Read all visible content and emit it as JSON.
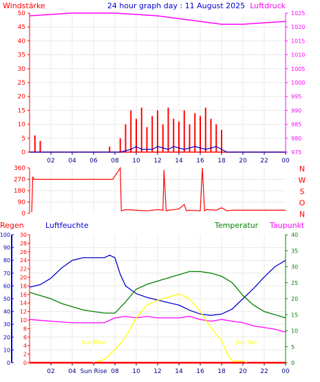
{
  "title": "24 hour graph day : 11 August 2025",
  "colors": {
    "red": "#ff0000",
    "magenta": "#ff00ff",
    "blue": "#0000cc",
    "green": "#008000",
    "yellow": "#ffff00",
    "grid": "#e8e8e8"
  },
  "chart_data": [
    {
      "type": "line",
      "name": "wind-pressure",
      "left_label": "Windstärke",
      "right_label": "Luftdruck",
      "x_ticks": [
        "02",
        "04",
        "06",
        "08",
        "10",
        "12",
        "14",
        "16",
        "18",
        "20",
        "22",
        "00"
      ],
      "y_left_ticks": [
        "0",
        "5",
        "10",
        "15",
        "20",
        "25",
        "30",
        "35",
        "40",
        "45",
        "50"
      ],
      "y_right_ticks": [
        "975",
        "980",
        "985",
        "990",
        "995",
        "1000",
        "1005",
        "1010",
        "1015",
        "1020",
        "1025"
      ],
      "series": [
        {
          "axis": "left",
          "color": "#ff0000",
          "style": "bars",
          "x": [
            0.5,
            1.0,
            7.5,
            8.5,
            9.0,
            9.5,
            10.0,
            10.5,
            11.0,
            11.5,
            12.0,
            12.5,
            13.0,
            13.5,
            14.0,
            14.5,
            15.0,
            15.5,
            16.0,
            16.5,
            17.0,
            17.5,
            18.0
          ],
          "y": [
            6,
            4,
            2,
            5,
            10,
            15,
            12,
            16,
            9,
            13,
            15,
            10,
            16,
            12,
            11,
            15,
            10,
            14,
            13,
            16,
            12,
            10,
            8
          ]
        },
        {
          "axis": "left",
          "color": "#0000cc",
          "style": "line",
          "x": [
            0,
            8.5,
            9.5,
            10.0,
            10.5,
            11.5,
            12.0,
            13.0,
            13.5,
            14.5,
            15.5,
            16.5,
            17.5,
            18.5,
            24.0
          ],
          "y": [
            0,
            0,
            1,
            2,
            1,
            1,
            2,
            1,
            2,
            1,
            2,
            1,
            2,
            0,
            0
          ]
        },
        {
          "axis": "right",
          "color": "#ff00ff",
          "style": "line",
          "x": [
            0,
            4,
            8,
            12,
            16,
            18,
            20,
            22,
            24
          ],
          "y": [
            1024,
            1025,
            1025,
            1024,
            1022,
            1021,
            1021,
            1021.5,
            1022
          ]
        }
      ],
      "xlim": [
        0,
        24
      ],
      "ylim_left": [
        0,
        50
      ],
      "ylim_right": [
        975,
        1025
      ]
    },
    {
      "type": "line",
      "name": "wind-direction",
      "y_left_ticks": [
        "360",
        "270",
        "180",
        "90",
        "0"
      ],
      "y_right_labels": [
        "N",
        "W",
        "S",
        "O",
        "N"
      ],
      "series": [
        {
          "color": "#ff0000",
          "x": [
            0.2,
            0.3,
            0.4,
            7.8,
            8.5,
            8.6,
            9.0,
            10.0,
            11.0,
            12.0,
            12.5,
            12.6,
            12.8,
            13.0,
            14.0,
            14.5,
            14.7,
            15.0,
            16.0,
            16.2,
            16.4,
            16.6,
            17.5,
            18.0,
            18.5,
            19.0,
            24.0
          ],
          "y": [
            10,
            290,
            270,
            270,
            360,
            20,
            30,
            25,
            20,
            30,
            25,
            345,
            20,
            25,
            35,
            70,
            20,
            25,
            20,
            360,
            20,
            30,
            25,
            45,
            20,
            25,
            25
          ]
        }
      ],
      "xlim": [
        0,
        24
      ],
      "ylim": [
        0,
        360
      ]
    },
    {
      "type": "line",
      "name": "humidity-temperature",
      "labels": {
        "regen": "Regen",
        "luftfeuchte": "Luftfeuchte",
        "temperatur": "Temperatur",
        "taupunkt": "Taupunkt"
      },
      "annotations": {
        "sun_rise": "Sun Rise",
        "sun_set": "Sun Set"
      },
      "x_ticks": [
        "02",
        "04",
        "Sun Rise",
        "08",
        "10",
        "12",
        "14",
        "16",
        "18",
        "20",
        "22",
        "00"
      ],
      "y_left_ticks": [
        "0",
        "10",
        "20",
        "30",
        "40",
        "50",
        "60",
        "70",
        "80",
        "90",
        "100"
      ],
      "y_regen_ticks": [
        "0",
        "2",
        "4",
        "6",
        "8",
        "10",
        "12",
        "14",
        "16",
        "18",
        "20",
        "22",
        "24",
        "26",
        "28",
        "30"
      ],
      "y_right_ticks": [
        "0",
        "5",
        "10",
        "15",
        "20",
        "25",
        "30",
        "35",
        "40"
      ],
      "series": [
        {
          "axis": "left",
          "color": "#0000cc",
          "x": [
            0,
            1,
            2,
            3,
            4,
            5,
            6,
            7,
            7.5,
            8,
            8.5,
            9,
            10,
            11,
            12,
            13,
            14,
            15,
            16,
            17,
            18,
            19,
            20,
            21,
            22,
            23,
            24
          ],
          "y": [
            59,
            61,
            66,
            74,
            80,
            82,
            82,
            82,
            84,
            82,
            69,
            60,
            54,
            51,
            49,
            47,
            45,
            41,
            38,
            37,
            38,
            42,
            50,
            58,
            67,
            75,
            80
          ]
        },
        {
          "axis": "right",
          "color": "#008000",
          "x": [
            0,
            1,
            2,
            3,
            4,
            5,
            6,
            7,
            8,
            9,
            10,
            11,
            12,
            13,
            14,
            15,
            16,
            17,
            18,
            19,
            20,
            21,
            22,
            23,
            24
          ],
          "y": [
            22,
            21,
            20,
            18.5,
            17.5,
            16.5,
            16,
            15.5,
            15.5,
            19,
            23,
            24.5,
            25.5,
            26.5,
            27.5,
            28.5,
            28.5,
            28,
            27,
            25,
            21,
            18,
            16,
            15,
            14
          ]
        },
        {
          "axis": "right",
          "color": "#ff00ff",
          "x": [
            0,
            2,
            4,
            6,
            7,
            8,
            9,
            10,
            11,
            12,
            13,
            14,
            15,
            16,
            17,
            18,
            19,
            20,
            21,
            22,
            23,
            24
          ],
          "y": [
            13.5,
            13,
            12.5,
            12.5,
            12.5,
            14,
            14.5,
            14,
            14.5,
            14,
            14,
            14,
            14.5,
            13.5,
            13,
            13.5,
            13,
            12.5,
            11.5,
            11,
            10.5,
            9.5
          ]
        },
        {
          "axis": "right",
          "color": "#ffff00",
          "x": [
            0,
            6,
            6.5,
            7,
            8,
            9,
            10,
            11,
            12,
            13,
            14,
            15,
            16,
            17,
            18,
            18.5,
            19,
            20,
            20.5,
            24
          ],
          "y": [
            0,
            0,
            0.5,
            1,
            4,
            8,
            14,
            18,
            19.5,
            20.5,
            21.5,
            20,
            16,
            11,
            7,
            3,
            0.5,
            0.5,
            0,
            0
          ]
        },
        {
          "axis": "regen",
          "color": "#ff0000",
          "x": [
            0,
            24
          ],
          "y": [
            0,
            0
          ]
        }
      ],
      "xlim": [
        0,
        24
      ],
      "ylim_left": [
        0,
        100
      ],
      "ylim_right": [
        0,
        40
      ],
      "ylim_regen": [
        0,
        30
      ]
    }
  ]
}
